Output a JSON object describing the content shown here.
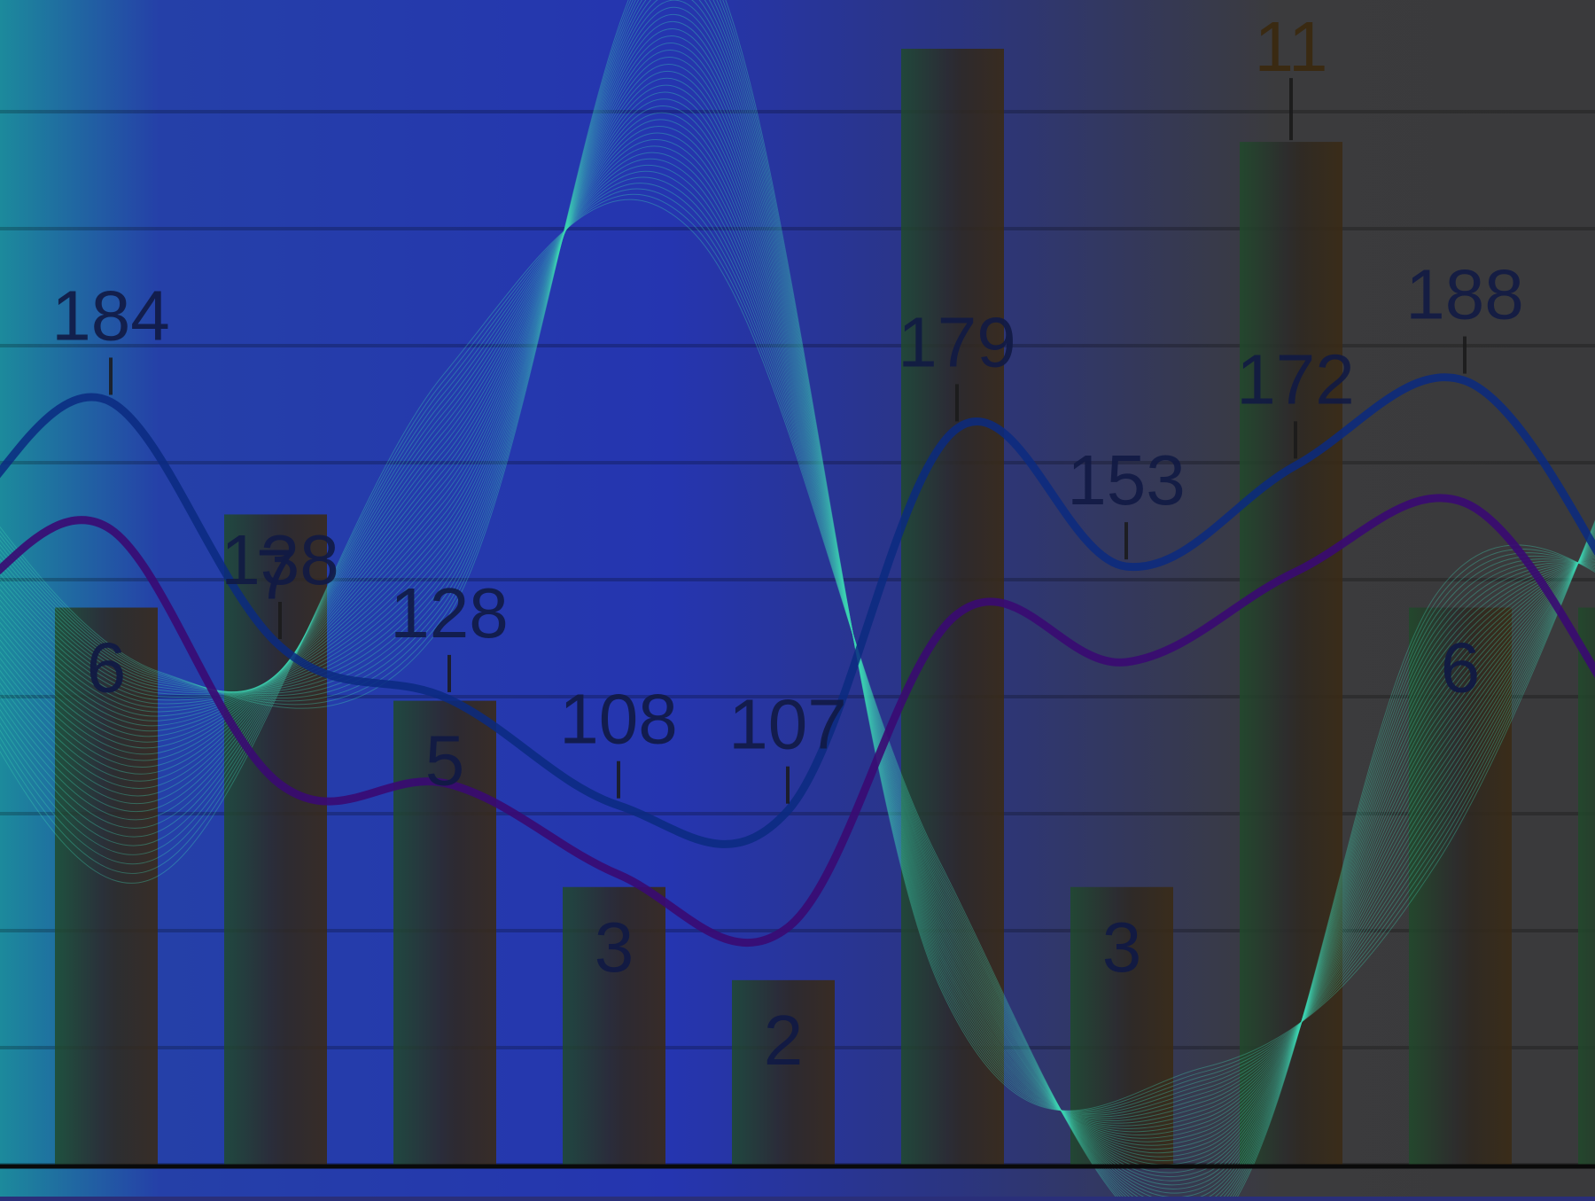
{
  "chart_data": {
    "type": "bar",
    "categories": [
      "",
      "",
      "",
      "",
      "",
      "",
      "",
      "",
      "",
      "",
      ""
    ],
    "bar_series": {
      "values": [
        6,
        7,
        5,
        3,
        2,
        12,
        3,
        11,
        6,
        6
      ],
      "labels": [
        "6",
        "7",
        "5",
        "3",
        "2",
        "",
        "3",
        "11",
        "6",
        ""
      ]
    },
    "line_series": {
      "values": [
        184,
        138,
        128,
        108,
        107,
        179,
        153,
        172,
        188
      ],
      "labels": [
        "184",
        "138",
        "128",
        "108",
        "107",
        "179",
        "153",
        "172",
        "188"
      ]
    },
    "secondary_line_values": [
      160,
      112,
      112,
      95,
      85,
      144,
      135,
      152,
      165
    ],
    "wave_band": {
      "description_values": [
        120,
        160,
        90,
        60,
        55,
        140
      ]
    },
    "bar_ylim": [
      0,
      12
    ],
    "line_ylim": [
      40,
      240
    ],
    "grid": true,
    "colors": {
      "bg_left": "#1c8a9c",
      "bg_mid": "#2535b0",
      "bg_right": "#3b3b3d",
      "bar": "#2b2b2b",
      "line_primary": "#0a2a80",
      "line_secondary": "#3a0a72",
      "wave": "#3fd6b4",
      "label": "#111a44",
      "axis": "#0a0a0a"
    }
  }
}
